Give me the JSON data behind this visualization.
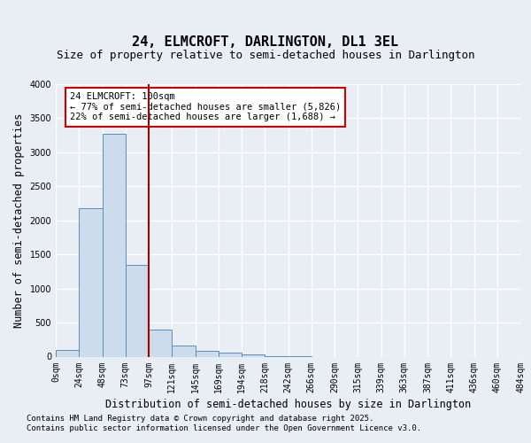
{
  "title": "24, ELMCROFT, DARLINGTON, DL1 3EL",
  "subtitle": "Size of property relative to semi-detached houses in Darlington",
  "xlabel": "Distribution of semi-detached houses by size in Darlington",
  "ylabel": "Number of semi-detached properties",
  "bar_labels": [
    "0sqm",
    "24sqm",
    "48sqm",
    "73sqm",
    "97sqm",
    "121sqm",
    "145sqm",
    "169sqm",
    "194sqm",
    "218sqm",
    "242sqm",
    "266sqm",
    "290sqm",
    "315sqm",
    "339sqm",
    "363sqm",
    "387sqm",
    "411sqm",
    "436sqm",
    "460sqm",
    "484sqm"
  ],
  "bar_values": [
    100,
    2175,
    3275,
    1350,
    400,
    165,
    85,
    55,
    30,
    10,
    5,
    0,
    0,
    0,
    0,
    0,
    0,
    0,
    0,
    0
  ],
  "bar_color": "#ccdcec",
  "bar_edge_color": "#5b8db8",
  "property_line_x": 4.0,
  "property_line_color": "#aa0000",
  "annotation_text": "24 ELMCROFT: 100sqm\n← 77% of semi-detached houses are smaller (5,826)\n22% of semi-detached houses are larger (1,688) →",
  "annotation_box_facecolor": "#ffffff",
  "annotation_box_edgecolor": "#cc0000",
  "ylim": [
    0,
    4000
  ],
  "yticks": [
    0,
    500,
    1000,
    1500,
    2000,
    2500,
    3000,
    3500,
    4000
  ],
  "background_color": "#e8eef4",
  "plot_bg_color": "#e8eef4",
  "grid_color": "#ffffff",
  "title_fontsize": 11,
  "subtitle_fontsize": 9,
  "axis_label_fontsize": 8.5,
  "tick_fontsize": 7,
  "annotation_fontsize": 7.5,
  "footer_fontsize": 6.5,
  "footer_line1": "Contains HM Land Registry data © Crown copyright and database right 2025.",
  "footer_line2": "Contains public sector information licensed under the Open Government Licence v3.0."
}
